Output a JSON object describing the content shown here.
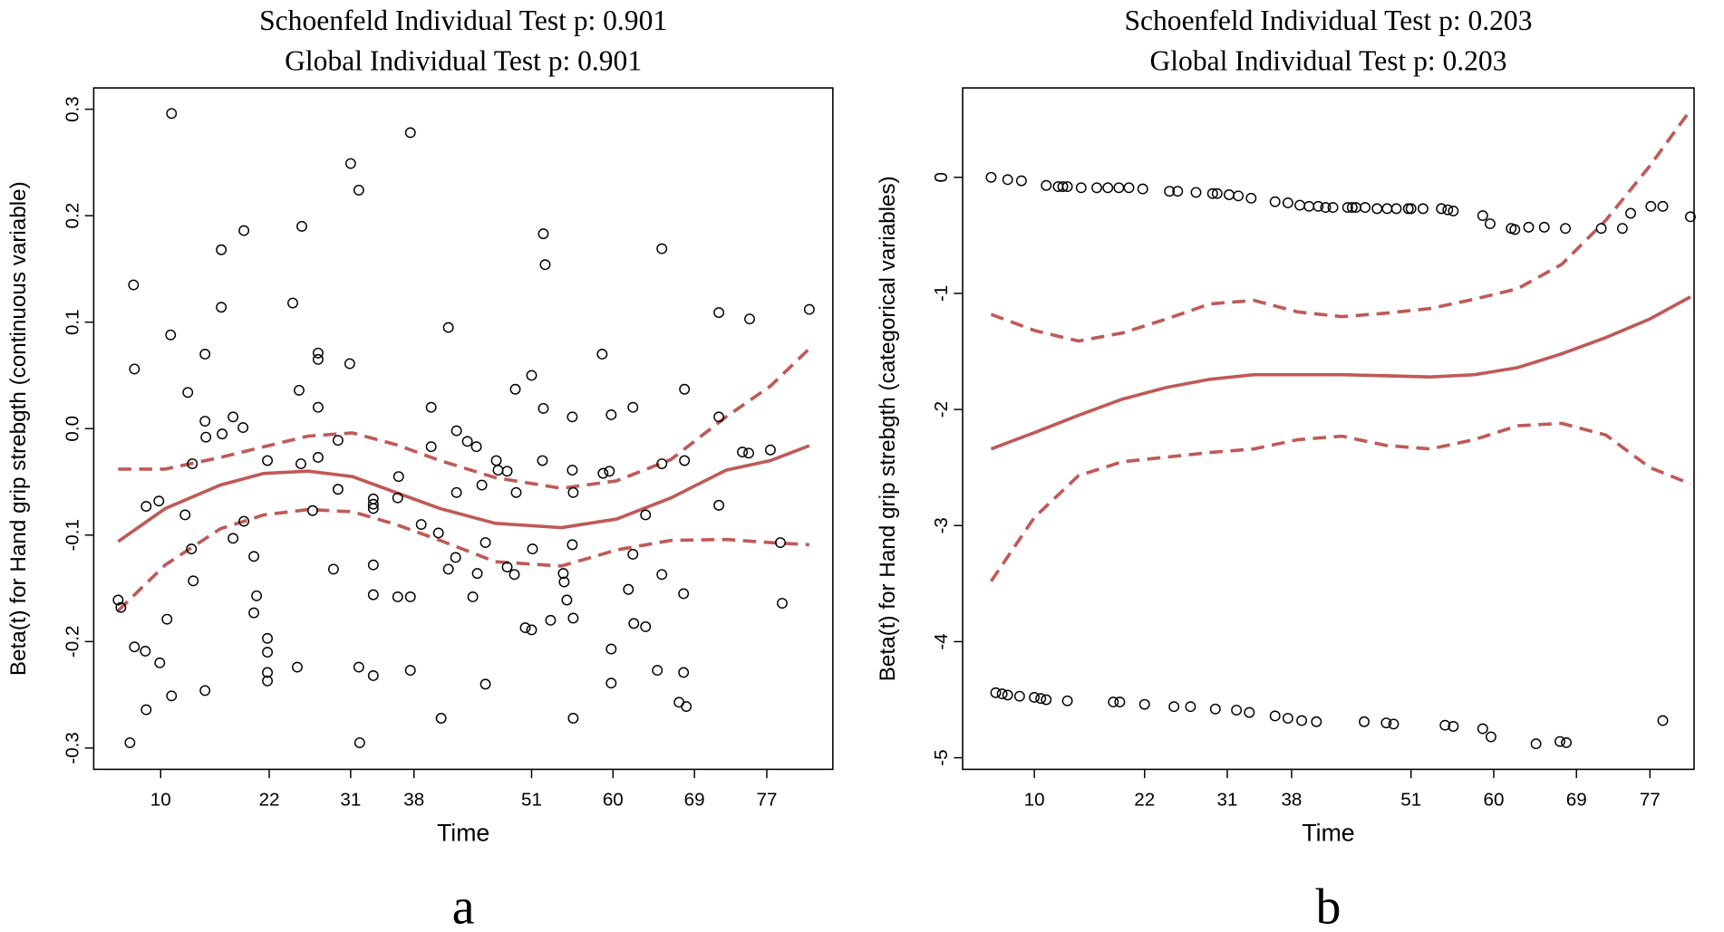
{
  "chart_data": [
    {
      "type": "scatter",
      "title": "Schoenfeld Individual Test p: 0.901",
      "subtitle": "Global Individual Test p: 0.901",
      "xlabel": "Time",
      "ylabel": "Beta(t) for Hand grip strebgth (continuous variable)",
      "label": "a",
      "xlim": [
        2.6,
        84.3
      ],
      "xticks": [
        10,
        22,
        31,
        38,
        51,
        60,
        69,
        77
      ],
      "ylim": [
        -0.32,
        0.32
      ],
      "yticks": [
        -0.3,
        -0.2,
        -0.1,
        {
          "value": 0,
          "label": "0.0"
        },
        0.1,
        0.2,
        0.3
      ],
      "color": "#000000",
      "x": [
        5.3,
        5.6,
        6.6,
        7.0,
        7.1,
        7.1,
        8.3,
        8.4,
        8.4,
        9.8,
        9.9,
        10.7,
        11.2,
        11.2,
        11.1,
        12.7,
        13.0,
        13.4,
        13.5,
        13.6,
        14.9,
        14.9,
        14.9,
        15.0,
        16.7,
        16.7,
        16.8,
        18.0,
        18.0,
        19.1,
        19.2,
        19.2,
        20.3,
        20.6,
        20.3,
        21.8,
        21.8,
        21.8,
        21.8,
        21.8,
        24.6,
        25.1,
        25.3,
        25.5,
        25.6,
        26.8,
        27.4,
        27.4,
        27.4,
        27.4,
        29.6,
        29.6,
        29.1,
        31.0,
        30.9,
        31.9,
        31.9,
        32.0,
        33.5,
        33.5,
        33.5,
        33.5,
        33.5,
        33.5,
        36.2,
        36.3,
        36.2,
        37.6,
        37.6,
        37.6,
        38.8,
        39.9,
        39.9,
        40.7,
        41.0,
        41.8,
        41.8,
        42.6,
        42.7,
        42.7,
        43.9,
        44.5,
        44.9,
        45.0,
        45.5,
        45.9,
        45.9,
        47.1,
        47.3,
        48.3,
        48.3,
        49.1,
        49.2,
        49.3,
        50.3,
        51.0,
        51.1,
        51.0,
        52.2,
        52.3,
        52.5,
        52.3,
        53.1,
        54.5,
        54.6,
        54.9,
        55.5,
        55.5,
        55.5,
        55.6,
        55.6,
        55.6,
        58.8,
        58.9,
        59.6,
        59.8,
        59.8,
        59.8,
        61.7,
        62.2,
        62.2,
        62.3,
        63.6,
        63.6,
        64.9,
        65.4,
        65.4,
        65.4,
        67.3,
        68.1,
        67.8,
        67.8,
        67.9,
        67.9,
        71.7,
        71.7,
        71.7,
        74.3,
        75.0,
        75.1,
        77.4,
        78.5,
        78.7,
        81.7
      ],
      "y": [
        -0.161,
        -0.168,
        -0.295,
        0.135,
        0.056,
        -0.205,
        -0.209,
        -0.264,
        -0.073,
        -0.068,
        -0.22,
        -0.179,
        0.296,
        -0.251,
        0.088,
        -0.081,
        0.034,
        -0.113,
        -0.033,
        -0.143,
        0.07,
        -0.246,
        0.007,
        -0.008,
        0.168,
        0.114,
        -0.005,
        -0.103,
        0.011,
        0.001,
        0.186,
        -0.087,
        -0.12,
        -0.157,
        -0.173,
        -0.197,
        -0.21,
        -0.229,
        -0.237,
        -0.03,
        0.118,
        -0.224,
        0.036,
        -0.033,
        0.19,
        -0.077,
        0.071,
        0.065,
        0.02,
        -0.027,
        -0.011,
        -0.057,
        -0.132,
        0.249,
        0.061,
        0.224,
        -0.224,
        -0.295,
        -0.128,
        -0.156,
        -0.066,
        -0.071,
        -0.075,
        -0.232,
        -0.158,
        -0.045,
        -0.065,
        0.278,
        -0.158,
        -0.227,
        -0.09,
        -0.017,
        0.02,
        -0.098,
        -0.272,
        -0.132,
        0.095,
        -0.121,
        -0.002,
        -0.06,
        -0.012,
        -0.158,
        -0.017,
        -0.136,
        -0.053,
        -0.24,
        -0.107,
        -0.03,
        -0.039,
        -0.04,
        -0.13,
        -0.137,
        0.037,
        -0.06,
        -0.187,
        -0.189,
        -0.113,
        0.05,
        -0.03,
        0.183,
        0.154,
        0.019,
        -0.18,
        -0.136,
        -0.144,
        -0.161,
        -0.109,
        -0.039,
        0.011,
        -0.272,
        -0.178,
        -0.06,
        0.07,
        -0.042,
        -0.04,
        0.013,
        -0.207,
        -0.239,
        -0.151,
        0.02,
        -0.118,
        -0.183,
        -0.081,
        -0.186,
        -0.227,
        0.169,
        -0.033,
        -0.137,
        -0.257,
        -0.261,
        -0.229,
        -0.155,
        -0.03,
        0.037,
        0.109,
        0.011,
        -0.072,
        -0.022,
        -0.023,
        0.103,
        -0.02,
        -0.107,
        -0.164,
        0.112
      ],
      "lines": [
        {
          "color": "#bf5a57",
          "dash": false,
          "x": [
            5.3,
            10.5,
            16.6,
            21.4,
            26.3,
            31.2,
            36.0,
            40.9,
            47.0,
            54.3,
            60.4,
            66.4,
            72.5,
            77.4,
            81.7
          ],
          "values": [
            -0.106,
            -0.075,
            -0.053,
            -0.042,
            -0.04,
            -0.045,
            -0.06,
            -0.075,
            -0.089,
            -0.093,
            -0.085,
            -0.065,
            -0.039,
            -0.03,
            -0.016
          ]
        },
        {
          "color": "#bf5a57",
          "dash": true,
          "x": [
            5.3,
            10.5,
            16.6,
            21.4,
            26.3,
            31.2,
            36.0,
            40.9,
            47.0,
            54.3,
            60.4,
            66.4,
            72.5,
            77.4,
            81.7
          ],
          "values": [
            -0.038,
            -0.038,
            -0.027,
            -0.017,
            -0.007,
            -0.004,
            -0.015,
            -0.03,
            -0.046,
            -0.056,
            -0.049,
            -0.029,
            0.011,
            0.04,
            0.075
          ]
        },
        {
          "color": "#bf5a57",
          "dash": true,
          "x": [
            5.3,
            10.5,
            16.6,
            21.4,
            26.3,
            31.2,
            36.0,
            40.9,
            47.0,
            54.3,
            60.4,
            66.4,
            72.5,
            77.4,
            81.7
          ],
          "values": [
            -0.171,
            -0.128,
            -0.094,
            -0.081,
            -0.076,
            -0.078,
            -0.09,
            -0.105,
            -0.125,
            -0.129,
            -0.114,
            -0.105,
            -0.104,
            -0.107,
            -0.109
          ]
        }
      ]
    },
    {
      "type": "scatter",
      "title": "Schoenfeld Individual Test p: 0.203",
      "subtitle": "Global Individual Test p: 0.203",
      "xlabel": "Time",
      "ylabel": "Beta(t) for Hand grip strebgth (categorical variables)",
      "label": "b",
      "xlim": [
        2.2,
        81.8
      ],
      "xticks": [
        10,
        22,
        31,
        38,
        51,
        60,
        69,
        77
      ],
      "ylim": [
        -5.1,
        0.77
      ],
      "yticks": [
        -5,
        -4,
        -3,
        -2,
        -1,
        0
      ],
      "color": "#000000",
      "x": [
        5.3,
        7.1,
        8.6,
        11.3,
        12.6,
        13.1,
        13.6,
        15.1,
        16.8,
        18.0,
        19.2,
        20.3,
        21.8,
        24.7,
        25.6,
        27.6,
        29.4,
        29.9,
        31.2,
        32.2,
        33.6,
        36.2,
        37.6,
        38.9,
        39.9,
        40.9,
        41.7,
        42.5,
        44.1,
        44.6,
        45.0,
        46.0,
        47.3,
        48.4,
        49.4,
        50.7,
        51.0,
        52.3,
        54.3,
        55.0,
        55.6,
        58.8,
        59.6,
        61.9,
        62.3,
        63.8,
        65.5,
        67.8,
        71.7,
        74.0,
        74.9,
        77.1,
        78.4,
        81.4,
        5.8,
        6.5,
        7.1,
        8.4,
        10.0,
        10.7,
        11.3,
        13.6,
        18.6,
        19.3,
        22.0,
        25.2,
        27.0,
        29.7,
        32.0,
        33.4,
        36.2,
        37.6,
        39.1,
        40.7,
        45.9,
        48.3,
        49.1,
        54.7,
        55.6,
        58.8,
        59.7,
        64.6,
        67.2,
        67.9,
        78.4
      ],
      "y": [
        0,
        -0.02,
        -0.03,
        -0.07,
        -0.08,
        -0.08,
        -0.08,
        -0.09,
        -0.09,
        -0.09,
        -0.09,
        -0.09,
        -0.1,
        -0.12,
        -0.12,
        -0.13,
        -0.14,
        -0.14,
        -0.15,
        -0.16,
        -0.18,
        -0.21,
        -0.22,
        -0.24,
        -0.25,
        -0.25,
        -0.26,
        -0.26,
        -0.26,
        -0.26,
        -0.26,
        -0.26,
        -0.27,
        -0.27,
        -0.27,
        -0.27,
        -0.27,
        -0.27,
        -0.27,
        -0.28,
        -0.29,
        -0.33,
        -0.4,
        -0.44,
        -0.45,
        -0.43,
        -0.43,
        -0.44,
        -0.44,
        -0.44,
        -0.31,
        -0.25,
        -0.25,
        -0.34,
        -4.44,
        -4.45,
        -4.46,
        -4.47,
        -4.48,
        -4.49,
        -4.5,
        -4.51,
        -4.52,
        -4.52,
        -4.54,
        -4.56,
        -4.56,
        -4.58,
        -4.59,
        -4.61,
        -4.64,
        -4.66,
        -4.68,
        -4.69,
        -4.69,
        -4.7,
        -4.71,
        -4.72,
        -4.73,
        -4.75,
        -4.82,
        -4.88,
        -4.86,
        -4.87,
        -4.68
      ],
      "lines": [
        {
          "color": "#bf5a57",
          "dash": false,
          "x": [
            5.3,
            10.0,
            14.8,
            19.6,
            24.4,
            29.1,
            33.9,
            38.7,
            43.5,
            48.3,
            53.1,
            57.9,
            62.6,
            67.4,
            72.2,
            77.0,
            81.4
          ],
          "values": [
            -2.34,
            -2.2,
            -2.05,
            -1.91,
            -1.81,
            -1.74,
            -1.7,
            -1.7,
            -1.7,
            -1.71,
            -1.72,
            -1.7,
            -1.64,
            -1.52,
            -1.38,
            -1.22,
            -1.03
          ]
        },
        {
          "color": "#bf5a57",
          "dash": true,
          "x": [
            5.3,
            10.0,
            14.8,
            19.6,
            24.4,
            29.1,
            33.9,
            38.7,
            43.5,
            48.3,
            53.1,
            57.9,
            62.6,
            67.4,
            72.2,
            77.0,
            81.4
          ],
          "values": [
            -1.18,
            -1.32,
            -1.41,
            -1.34,
            -1.22,
            -1.09,
            -1.06,
            -1.16,
            -1.2,
            -1.17,
            -1.13,
            -1.05,
            -0.96,
            -0.75,
            -0.37,
            0.1,
            0.58
          ]
        },
        {
          "color": "#bf5a57",
          "dash": true,
          "x": [
            5.3,
            10.0,
            14.8,
            19.6,
            24.4,
            29.1,
            33.9,
            38.7,
            43.5,
            48.3,
            53.1,
            57.9,
            62.6,
            67.4,
            72.2,
            77.0,
            81.4
          ],
          "values": [
            -3.48,
            -2.93,
            -2.57,
            -2.45,
            -2.41,
            -2.37,
            -2.34,
            -2.26,
            -2.23,
            -2.31,
            -2.34,
            -2.26,
            -2.14,
            -2.12,
            -2.22,
            -2.5,
            -2.64
          ]
        }
      ]
    }
  ]
}
